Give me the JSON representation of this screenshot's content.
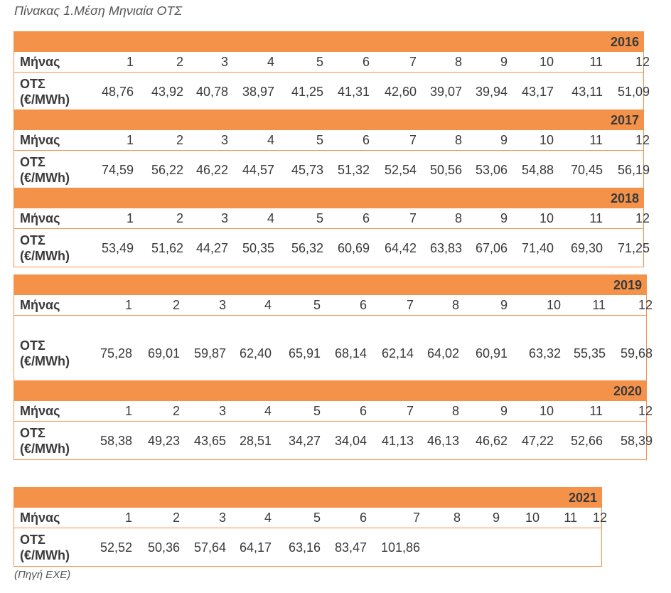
{
  "caption": "Πίνακας 1.Μέση Μηνιαία ΟΤΣ",
  "source": "(Πηγή ΕΧΕ)",
  "row_label_month": "Μήνας",
  "row_label_ots_line1": "ΟΤΣ",
  "row_label_ots_line2": "(€/MWh)",
  "tables": [
    {
      "year": "2016",
      "months": [
        "1",
        "2",
        "3",
        "4",
        "5",
        "6",
        "7",
        "8",
        "9",
        "10",
        "11",
        "12"
      ],
      "values": [
        "48,76",
        "43,92",
        "40,78",
        "38,97",
        "41,25",
        "41,31",
        "42,60",
        "39,07",
        "39,94",
        "43,17",
        "43,11",
        "51,09"
      ]
    },
    {
      "year": "2017",
      "months": [
        "1",
        "2",
        "3",
        "4",
        "5",
        "6",
        "7",
        "8",
        "9",
        "10",
        "11",
        "12"
      ],
      "values": [
        "74,59",
        "56,22",
        "46,22",
        "44,57",
        "45,73",
        "51,32",
        "52,54",
        "50,56",
        "53,06",
        "54,88",
        "70,45",
        "56,19"
      ]
    },
    {
      "year": "2018",
      "months": [
        "1",
        "2",
        "3",
        "4",
        "5",
        "6",
        "7",
        "8",
        "9",
        "10",
        "11",
        "12"
      ],
      "values": [
        "53,49",
        "51,62",
        "44,27",
        "50,35",
        "56,32",
        "60,69",
        "64,42",
        "63,83",
        "67,06",
        "71,40",
        "69,30",
        "71,25"
      ]
    },
    {
      "year": "2019",
      "months": [
        "1",
        "2",
        "3",
        "4",
        "5",
        "6",
        "7",
        "8",
        "9",
        "10",
        "11",
        "12"
      ],
      "values": [
        "75,28",
        "69,01",
        "59,87",
        "62,40",
        "65,91",
        "68,14",
        "62,14",
        "64,02",
        "60,91",
        "63,32",
        "55,35",
        "59,68"
      ]
    },
    {
      "year": "2020",
      "months": [
        "1",
        "2",
        "3",
        "4",
        "5",
        "6",
        "7",
        "8",
        "9",
        "10",
        "11",
        "12"
      ],
      "values": [
        "58,38",
        "49,23",
        "43,65",
        "28,51",
        "34,27",
        "34,04",
        "41,13",
        "46,13",
        "46,62",
        "47,22",
        "52,66",
        "58,39"
      ]
    },
    {
      "year": "2021",
      "months": [
        "1",
        "2",
        "3",
        "4",
        "5",
        "6",
        "7",
        "8",
        "9",
        "10",
        "11",
        "12"
      ],
      "values": [
        "52,52",
        "50,36",
        "57,64",
        "64,17",
        "63,16",
        "83,47",
        "101,86",
        "",
        "",
        "",
        "",
        ""
      ]
    }
  ]
}
